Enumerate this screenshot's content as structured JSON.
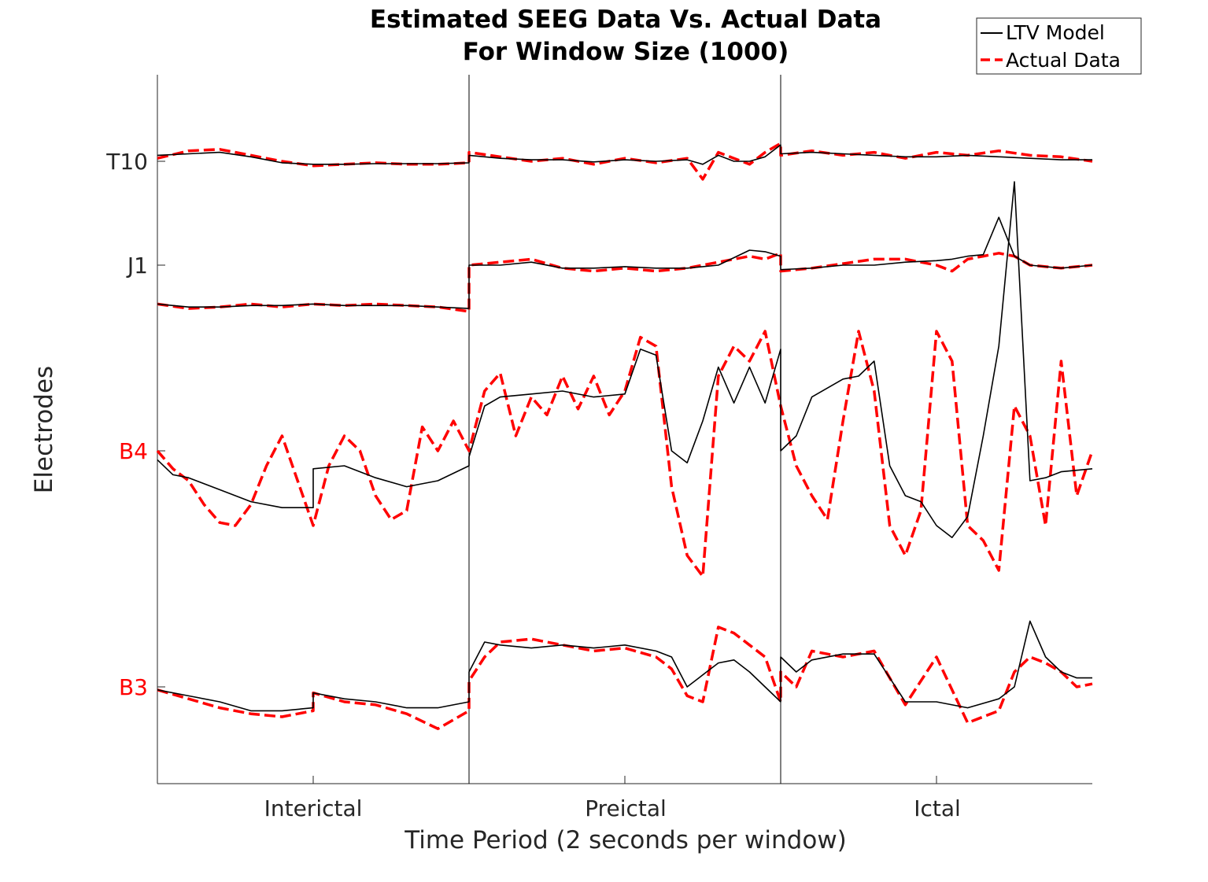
{
  "chart_data": {
    "type": "line",
    "title": [
      "Estimated SEEG Data Vs. Actual Data",
      "For Window Size (1000)"
    ],
    "xlabel": "Time Period (2 seconds per window)",
    "ylabel": "Electrodes",
    "x_ticks": [
      "Interictal",
      "Preictal",
      "Ictal"
    ],
    "x_tick_colors": [
      "#262626",
      "#262626",
      "#262626"
    ],
    "y_ticks": [
      "T10",
      "J1",
      "B4",
      "B3"
    ],
    "y_tick_colors": [
      "#262626",
      "#262626",
      "#ff0000",
      "#ff0000"
    ],
    "legend": {
      "location": "top-right",
      "entries": [
        {
          "label": "LTV Model",
          "color": "#000000",
          "style": "solid"
        },
        {
          "label": "Actual Data",
          "color": "#ff0000",
          "style": "dashed"
        }
      ]
    },
    "x_range": [
      0,
      3
    ],
    "period_boundaries": [
      1,
      2
    ],
    "series": [
      {
        "name": "LTV Model",
        "electrode": "T10",
        "color": "#000000",
        "style": "solid",
        "x": [
          0,
          0.1,
          0.2,
          0.3,
          0.4,
          0.5,
          0.6,
          0.7,
          0.8,
          0.9,
          1.0,
          1.0,
          1.1,
          1.2,
          1.3,
          1.4,
          1.5,
          1.6,
          1.7,
          1.75,
          1.8,
          1.85,
          1.9,
          1.95,
          2.0,
          2.0,
          2.1,
          2.2,
          2.3,
          2.4,
          2.5,
          2.6,
          2.7,
          2.8,
          2.9,
          3.0
        ],
        "y": [
          0.2,
          0.25,
          0.3,
          0.15,
          -0.05,
          -0.1,
          -0.1,
          -0.08,
          -0.08,
          -0.08,
          -0.05,
          0.2,
          0.1,
          0.05,
          0.05,
          -0.02,
          0.05,
          0.0,
          0.05,
          -0.1,
          0.2,
          0.0,
          0.0,
          0.15,
          0.55,
          0.25,
          0.3,
          0.25,
          0.2,
          0.15,
          0.15,
          0.2,
          0.15,
          0.1,
          0.05,
          0.05
        ]
      },
      {
        "name": "Actual Data",
        "electrode": "T10",
        "color": "#ff0000",
        "style": "dashed",
        "x": [
          0,
          0.1,
          0.2,
          0.3,
          0.4,
          0.5,
          0.6,
          0.7,
          0.8,
          0.9,
          1.0,
          1.0,
          1.1,
          1.2,
          1.3,
          1.4,
          1.5,
          1.6,
          1.7,
          1.75,
          1.8,
          1.85,
          1.9,
          1.95,
          2.0,
          2.0,
          2.1,
          2.2,
          2.3,
          2.4,
          2.5,
          2.6,
          2.7,
          2.8,
          2.9,
          3.0
        ],
        "y": [
          0.1,
          0.35,
          0.4,
          0.2,
          0.0,
          -0.15,
          -0.1,
          -0.05,
          -0.1,
          -0.1,
          -0.05,
          0.3,
          0.15,
          0.0,
          0.1,
          -0.1,
          0.1,
          -0.05,
          0.1,
          -0.6,
          0.3,
          0.1,
          -0.1,
          0.3,
          0.6,
          0.2,
          0.35,
          0.2,
          0.3,
          0.1,
          0.3,
          0.2,
          0.35,
          0.2,
          0.15,
          0.0
        ]
      },
      {
        "name": "LTV Model",
        "electrode": "J1",
        "color": "#000000",
        "style": "solid",
        "x": [
          0,
          0.1,
          0.2,
          0.3,
          0.4,
          0.5,
          0.6,
          0.7,
          0.8,
          0.9,
          1.0,
          1.0,
          1.1,
          1.2,
          1.3,
          1.4,
          1.5,
          1.6,
          1.7,
          1.8,
          1.9,
          1.95,
          2.0,
          2.0,
          2.1,
          2.2,
          2.3,
          2.4,
          2.5,
          2.55,
          2.6,
          2.65,
          2.7,
          2.75,
          2.8,
          2.9,
          3.0
        ],
        "y": [
          -1.3,
          -1.4,
          -1.4,
          -1.35,
          -1.35,
          -1.3,
          -1.35,
          -1.35,
          -1.35,
          -1.4,
          -1.45,
          0.0,
          0.0,
          0.1,
          -0.1,
          -0.1,
          -0.05,
          -0.1,
          -0.1,
          0.0,
          0.5,
          0.45,
          0.3,
          -0.15,
          -0.1,
          0.0,
          0.0,
          0.1,
          0.15,
          0.2,
          0.3,
          0.35,
          1.6,
          0.3,
          0.0,
          -0.1,
          0.0
        ]
      },
      {
        "name": "Actual Data",
        "electrode": "J1",
        "color": "#ff0000",
        "style": "dashed",
        "x": [
          0,
          0.1,
          0.2,
          0.3,
          0.4,
          0.5,
          0.6,
          0.7,
          0.8,
          0.9,
          1.0,
          1.0,
          1.1,
          1.2,
          1.3,
          1.4,
          1.5,
          1.6,
          1.7,
          1.8,
          1.9,
          1.95,
          2.0,
          2.0,
          2.1,
          2.2,
          2.3,
          2.4,
          2.5,
          2.55,
          2.6,
          2.65,
          2.7,
          2.75,
          2.8,
          2.9,
          3.0
        ],
        "y": [
          -1.3,
          -1.45,
          -1.4,
          -1.3,
          -1.4,
          -1.3,
          -1.35,
          -1.3,
          -1.35,
          -1.4,
          -1.55,
          0.0,
          0.1,
          0.2,
          -0.1,
          -0.2,
          -0.1,
          -0.2,
          -0.1,
          0.1,
          0.3,
          0.2,
          0.4,
          -0.2,
          -0.1,
          0.05,
          0.2,
          0.2,
          0.0,
          -0.2,
          0.2,
          0.3,
          0.4,
          0.3,
          0.0,
          -0.1,
          0.0
        ]
      },
      {
        "name": "LTV Model",
        "electrode": "B4",
        "color": "#000000",
        "style": "solid",
        "x": [
          0,
          0.05,
          0.1,
          0.2,
          0.3,
          0.4,
          0.5,
          0.5,
          0.6,
          0.7,
          0.8,
          0.9,
          1.0,
          1.0,
          1.05,
          1.1,
          1.2,
          1.3,
          1.4,
          1.5,
          1.55,
          1.6,
          1.65,
          1.7,
          1.75,
          1.8,
          1.85,
          1.9,
          1.95,
          2.0,
          2.0,
          2.05,
          2.1,
          2.2,
          2.25,
          2.3,
          2.35,
          2.4,
          2.45,
          2.5,
          2.55,
          2.6,
          2.65,
          2.7,
          2.75,
          2.8,
          2.85,
          2.9,
          3.0
        ],
        "y": [
          -0.3,
          -0.8,
          -0.9,
          -1.3,
          -1.7,
          -1.9,
          -1.9,
          -0.6,
          -0.5,
          -0.9,
          -1.2,
          -1.0,
          -0.5,
          -0.2,
          1.5,
          1.8,
          1.9,
          2.0,
          1.8,
          1.9,
          3.4,
          3.2,
          0.0,
          -0.4,
          1.0,
          2.8,
          1.6,
          2.8,
          1.6,
          3.4,
          0.0,
          0.5,
          1.8,
          2.4,
          2.5,
          3.0,
          -0.5,
          -1.5,
          -1.7,
          -2.5,
          -2.9,
          -2.2,
          0.5,
          3.5,
          9.0,
          -1.0,
          -0.9,
          -0.7,
          -0.6
        ]
      },
      {
        "name": "Actual Data",
        "electrode": "B4",
        "color": "#ff0000",
        "style": "dashed",
        "x": [
          0,
          0.05,
          0.1,
          0.15,
          0.2,
          0.25,
          0.3,
          0.35,
          0.4,
          0.45,
          0.5,
          0.55,
          0.6,
          0.65,
          0.7,
          0.75,
          0.8,
          0.85,
          0.9,
          0.95,
          1.0,
          1.05,
          1.1,
          1.15,
          1.2,
          1.25,
          1.3,
          1.35,
          1.4,
          1.45,
          1.5,
          1.55,
          1.6,
          1.65,
          1.7,
          1.75,
          1.8,
          1.85,
          1.9,
          1.95,
          2.0,
          2.05,
          2.1,
          2.15,
          2.2,
          2.25,
          2.3,
          2.35,
          2.4,
          2.45,
          2.5,
          2.55,
          2.6,
          2.65,
          2.7,
          2.75,
          2.8,
          2.85,
          2.9,
          2.95,
          3.0
        ],
        "y": [
          0.0,
          -0.6,
          -1.0,
          -1.8,
          -2.4,
          -2.5,
          -1.8,
          -0.5,
          0.5,
          -1.0,
          -2.5,
          -0.5,
          0.5,
          0.0,
          -1.5,
          -2.3,
          -2.0,
          0.8,
          0.0,
          1.0,
          0.0,
          2.0,
          2.6,
          0.5,
          1.8,
          1.2,
          2.5,
          1.4,
          2.5,
          1.2,
          2.0,
          3.8,
          3.5,
          -1.2,
          -3.5,
          -4.2,
          2.5,
          3.5,
          3.0,
          4.0,
          1.5,
          -0.5,
          -1.5,
          -2.3,
          1.0,
          4.0,
          2.0,
          -2.5,
          -3.5,
          -2.0,
          4.0,
          3.0,
          -2.5,
          -3.0,
          -4.0,
          1.5,
          0.5,
          -2.5,
          3.0,
          -1.5,
          0.0
        ]
      },
      {
        "name": "LTV Model",
        "electrode": "B3",
        "color": "#000000",
        "style": "solid",
        "x": [
          0,
          0.1,
          0.2,
          0.3,
          0.4,
          0.5,
          0.5,
          0.6,
          0.7,
          0.8,
          0.9,
          1.0,
          1.0,
          1.05,
          1.1,
          1.2,
          1.3,
          1.4,
          1.5,
          1.6,
          1.65,
          1.7,
          1.75,
          1.8,
          1.85,
          1.9,
          1.95,
          2.0,
          2.0,
          2.05,
          2.1,
          2.2,
          2.3,
          2.4,
          2.5,
          2.6,
          2.7,
          2.75,
          2.8,
          2.85,
          2.9,
          2.95,
          3.0
        ],
        "y": [
          -0.1,
          -0.3,
          -0.5,
          -0.8,
          -0.8,
          -0.7,
          -0.2,
          -0.4,
          -0.5,
          -0.7,
          -0.7,
          -0.5,
          0.5,
          1.5,
          1.4,
          1.3,
          1.4,
          1.3,
          1.4,
          1.2,
          1.0,
          0.0,
          0.4,
          0.8,
          0.9,
          0.5,
          0.0,
          -0.5,
          1.0,
          0.5,
          0.9,
          1.1,
          1.1,
          -0.5,
          -0.5,
          -0.7,
          -0.4,
          0.0,
          2.2,
          1.0,
          0.5,
          0.3,
          0.3
        ]
      },
      {
        "name": "Actual Data",
        "electrode": "B3",
        "color": "#ff0000",
        "style": "dashed",
        "x": [
          0,
          0.1,
          0.2,
          0.3,
          0.4,
          0.5,
          0.5,
          0.6,
          0.7,
          0.8,
          0.9,
          1.0,
          1.0,
          1.05,
          1.1,
          1.2,
          1.3,
          1.4,
          1.5,
          1.6,
          1.65,
          1.7,
          1.75,
          1.8,
          1.85,
          1.9,
          1.95,
          2.0,
          2.0,
          2.05,
          2.1,
          2.2,
          2.3,
          2.4,
          2.5,
          2.6,
          2.7,
          2.75,
          2.8,
          2.85,
          2.9,
          2.95,
          3.0
        ],
        "y": [
          -0.1,
          -0.4,
          -0.7,
          -0.9,
          -1.0,
          -0.8,
          -0.2,
          -0.5,
          -0.6,
          -0.9,
          -1.4,
          -0.8,
          0.2,
          1.0,
          1.5,
          1.6,
          1.4,
          1.2,
          1.3,
          1.0,
          0.6,
          -0.3,
          -0.5,
          2.0,
          1.8,
          1.4,
          1.0,
          -0.5,
          0.5,
          0.0,
          1.2,
          1.0,
          1.2,
          -0.6,
          1.0,
          -1.2,
          -0.8,
          0.5,
          1.0,
          0.8,
          0.5,
          0.0,
          0.1
        ]
      }
    ]
  }
}
